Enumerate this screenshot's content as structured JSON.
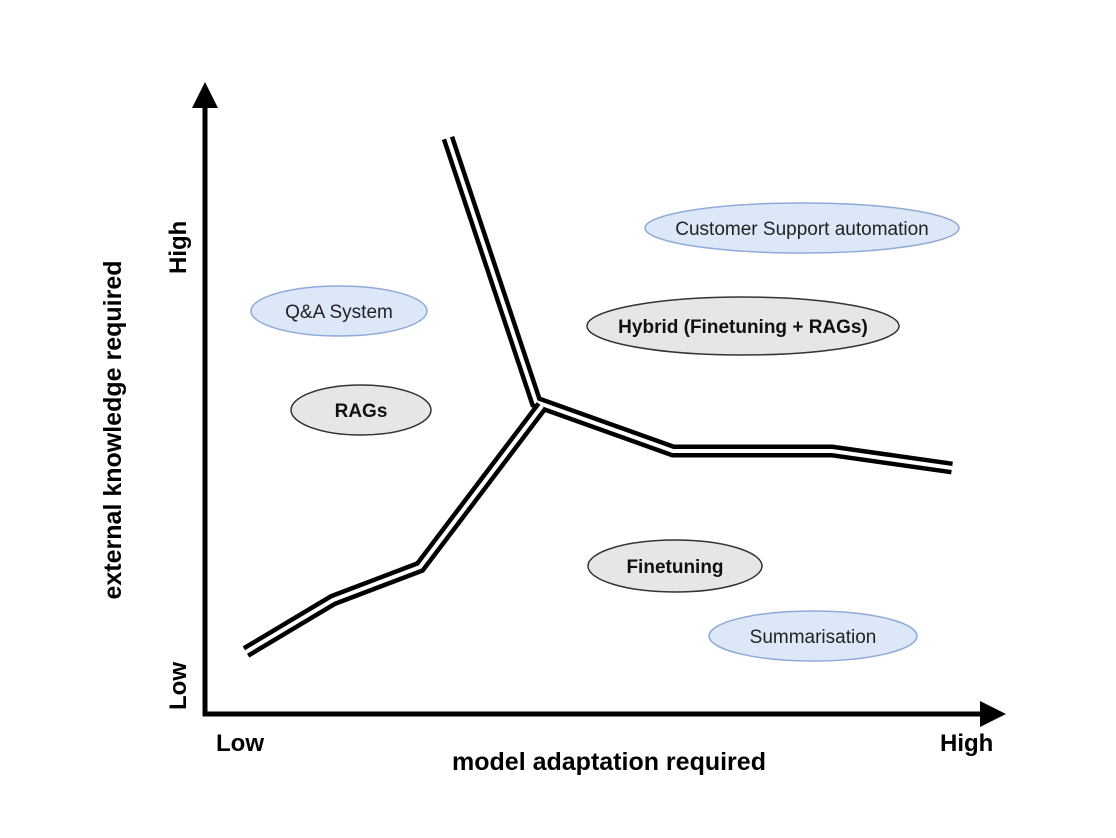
{
  "axes": {
    "x_title": "model adaptation required",
    "y_title": "external knowledge required",
    "x_low": "Low",
    "x_high": "High",
    "y_low": "Low",
    "y_high": "High"
  },
  "regions": {
    "rags": "RAGs",
    "hybrid": "Hybrid (Finetuning + RAGs)",
    "finetuning": "Finetuning"
  },
  "use_cases": {
    "qa_system": "Q&A System",
    "customer_support": "Customer Support automation",
    "summarisation": "Summarisation"
  },
  "colors": {
    "axis": "#000000",
    "region_fill": "#e6e6e6",
    "region_stroke": "#333333",
    "use_case_fill": "#dce7f7",
    "use_case_stroke": "#8faad8"
  }
}
